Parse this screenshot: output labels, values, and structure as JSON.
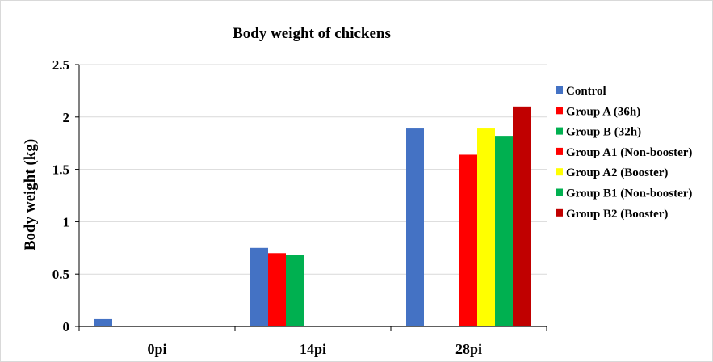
{
  "chart_data": {
    "type": "bar",
    "title": "Body weight of chickens",
    "xlabel": "",
    "ylabel": "Body weight (kg)",
    "ylim": [
      0,
      2.5
    ],
    "yticks": [
      "0",
      "0.5",
      "1",
      "1.5",
      "2",
      "2.5"
    ],
    "grid": true,
    "legend_position": "right",
    "categories": [
      "0pi",
      "14pi",
      "28pi"
    ],
    "series": [
      {
        "name": "Control",
        "color": "#4472C4",
        "values": [
          0.07,
          0.75,
          1.89
        ]
      },
      {
        "name": "Group A (36h)",
        "color": "#FF0000",
        "values": [
          null,
          0.7,
          null
        ]
      },
      {
        "name": "Group B (32h)",
        "color": "#00B050",
        "values": [
          null,
          0.68,
          null
        ]
      },
      {
        "name": "Group A1 (Non-booster)",
        "color": "#FF0000",
        "values": [
          null,
          null,
          1.64
        ]
      },
      {
        "name": "Group A2 (Booster)",
        "color": "#FFFF00",
        "values": [
          null,
          null,
          1.89
        ]
      },
      {
        "name": "Group B1 (Non-booster)",
        "color": "#00B050",
        "values": [
          null,
          null,
          1.82
        ]
      },
      {
        "name": "Group B2 (Booster)",
        "color": "#C00000",
        "values": [
          null,
          null,
          2.1
        ]
      }
    ]
  }
}
